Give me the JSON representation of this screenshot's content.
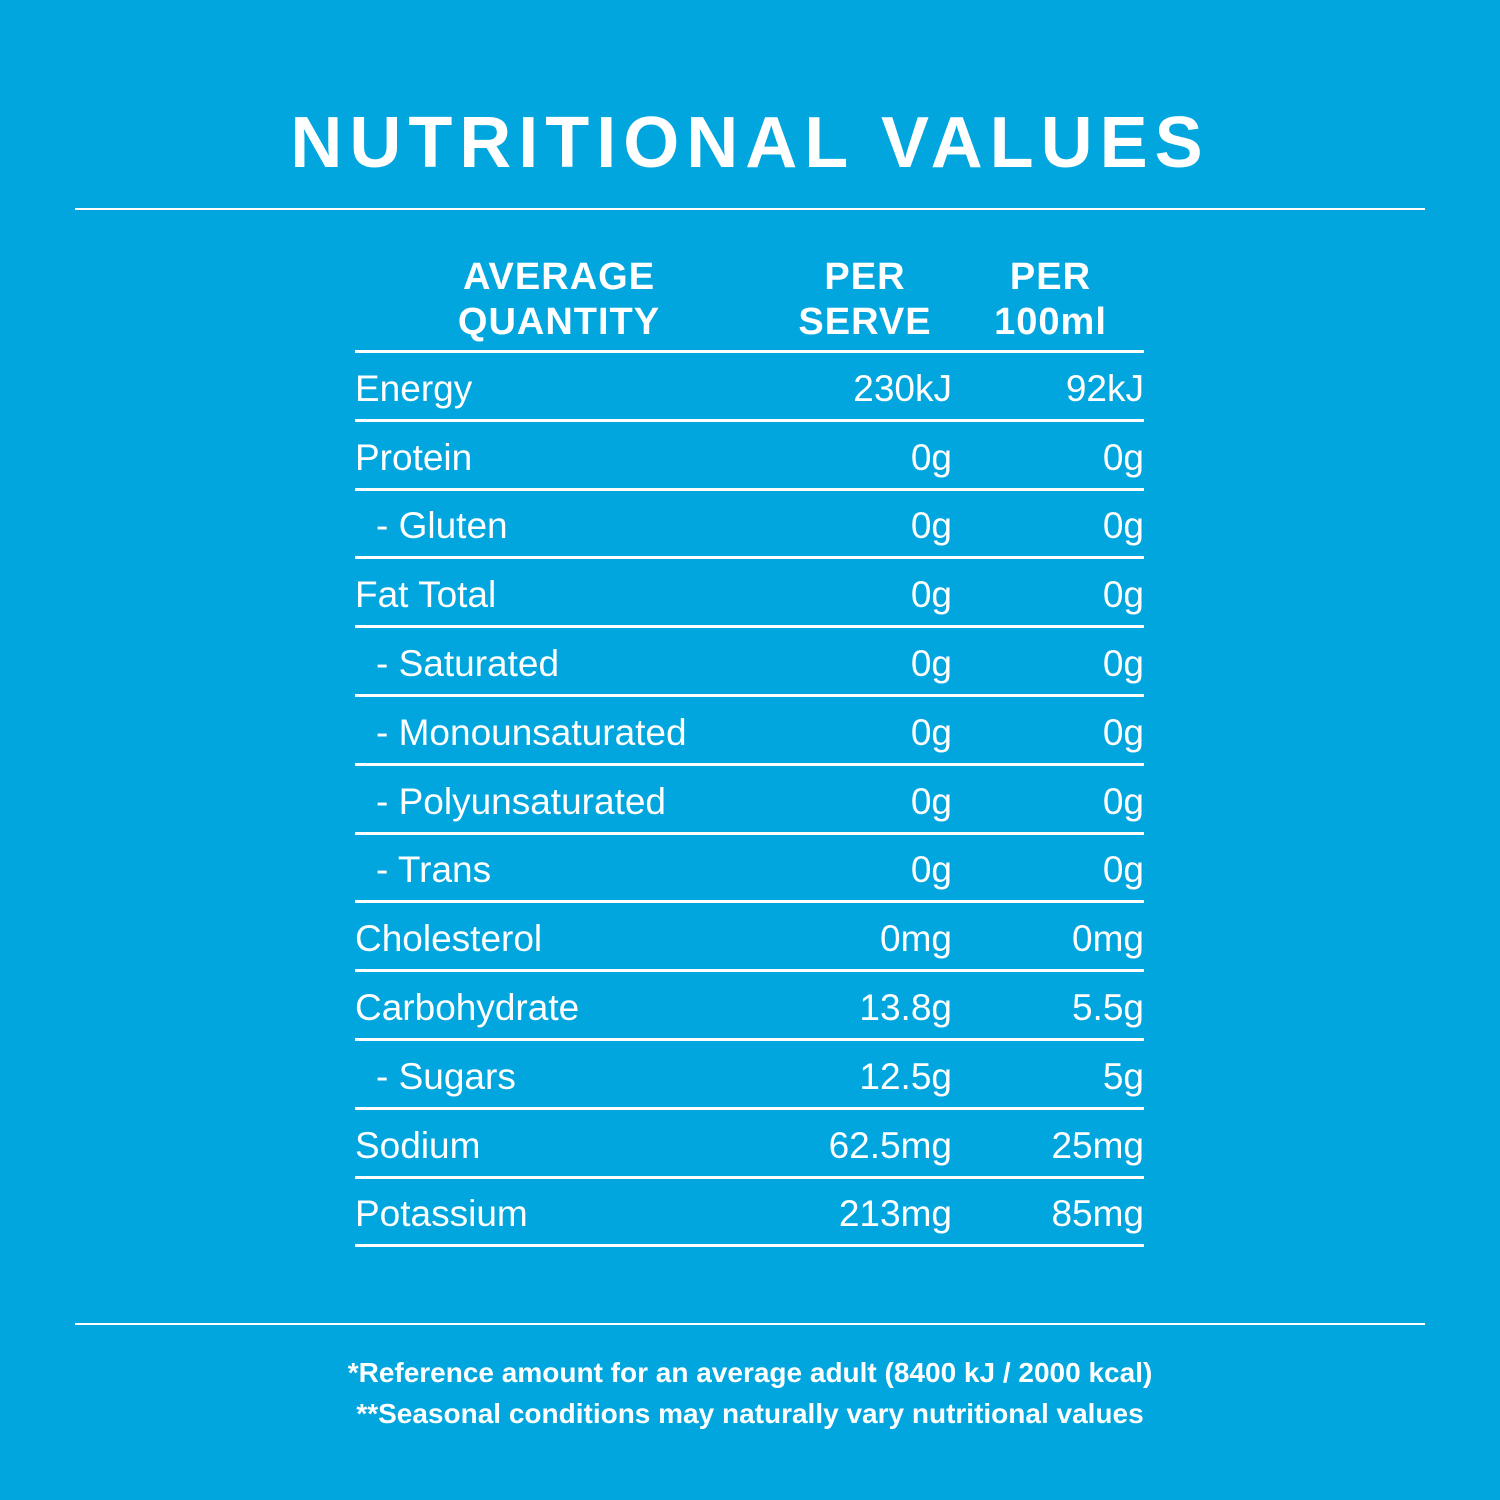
{
  "title": "NUTRITIONAL VALUES",
  "table": {
    "headers": {
      "quantity_line1": "AVERAGE",
      "quantity_line2": "QUANTITY",
      "serve_line1": "PER",
      "serve_line2": "SERVE",
      "per100_line1": "PER",
      "per100_line2": "100ml"
    },
    "rows": [
      {
        "name": "Energy",
        "per_serve": "230kJ",
        "per_100ml": "92kJ"
      },
      {
        "name": "Protein",
        "per_serve": "0g",
        "per_100ml": "0g"
      },
      {
        "name": "- Gluten",
        "per_serve": "0g",
        "per_100ml": "0g"
      },
      {
        "name": "Fat Total",
        "per_serve": "0g",
        "per_100ml": "0g"
      },
      {
        "name": "- Saturated",
        "per_serve": "0g",
        "per_100ml": "0g"
      },
      {
        "name": "- Monounsaturated",
        "per_serve": "0g",
        "per_100ml": "0g"
      },
      {
        "name": "- Polyunsaturated",
        "per_serve": "0g",
        "per_100ml": "0g"
      },
      {
        "name": "- Trans",
        "per_serve": "0g",
        "per_100ml": "0g"
      },
      {
        "name": "Cholesterol",
        "per_serve": "0mg",
        "per_100ml": "0mg"
      },
      {
        "name": "Carbohydrate",
        "per_serve": "13.8g",
        "per_100ml": "5.5g"
      },
      {
        "name": "- Sugars",
        "per_serve": "12.5g",
        "per_100ml": "5g"
      },
      {
        "name": "Sodium",
        "per_serve": "62.5mg",
        "per_100ml": "25mg"
      },
      {
        "name": "Potassium",
        "per_serve": "213mg",
        "per_100ml": "85mg"
      }
    ]
  },
  "footnotes": {
    "line1": "*Reference amount for an average adult (8400 kJ / 2000 kcal)",
    "line2": "**Seasonal conditions may naturally vary nutritional values"
  },
  "colors": {
    "background": "#00a6dd",
    "text": "#ffffff"
  }
}
